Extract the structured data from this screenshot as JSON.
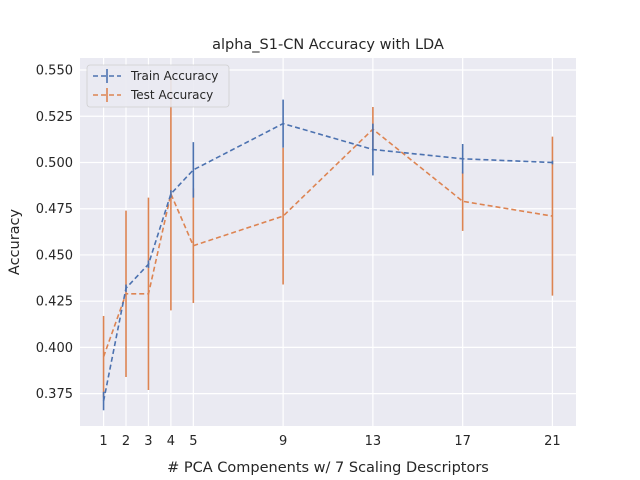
{
  "chart_data": {
    "type": "line",
    "title": "alpha_S1-CN Accuracy with LDA",
    "xlabel": "# PCA Compenents w/ 7 Scaling Descriptors",
    "ylabel": "Accuracy",
    "x": [
      1,
      2,
      3,
      4,
      5,
      9,
      13,
      17,
      21
    ],
    "x_ticks": [
      1,
      2,
      3,
      4,
      5,
      9,
      13,
      17,
      21
    ],
    "xlim": [
      -0.05,
      22.05
    ],
    "ylim": [
      0.3575,
      0.5565
    ],
    "y_ticks": [
      0.375,
      0.4,
      0.425,
      0.45,
      0.475,
      0.5,
      0.525,
      0.55
    ],
    "y_tick_labels": [
      "0.375",
      "0.400",
      "0.425",
      "0.450",
      "0.475",
      "0.500",
      "0.525",
      "0.550"
    ],
    "grid": true,
    "legend_position": "top-left",
    "series": [
      {
        "name": "Train Accuracy",
        "color": "#4c72b0",
        "values": [
          0.371,
          0.432,
          0.445,
          0.483,
          0.496,
          0.521,
          0.507,
          0.502,
          0.5
        ],
        "errors": [
          0.005,
          0.002,
          0.002,
          0.002,
          0.015,
          0.013,
          0.014,
          0.008,
          0.001
        ]
      },
      {
        "name": "Test Accuracy",
        "color": "#dd8452",
        "values": [
          0.395,
          0.429,
          0.429,
          0.483,
          0.455,
          0.471,
          0.518,
          0.479,
          0.471
        ],
        "errors": [
          0.022,
          0.045,
          0.052,
          0.063,
          0.031,
          0.037,
          0.012,
          0.016,
          0.043
        ]
      }
    ]
  }
}
